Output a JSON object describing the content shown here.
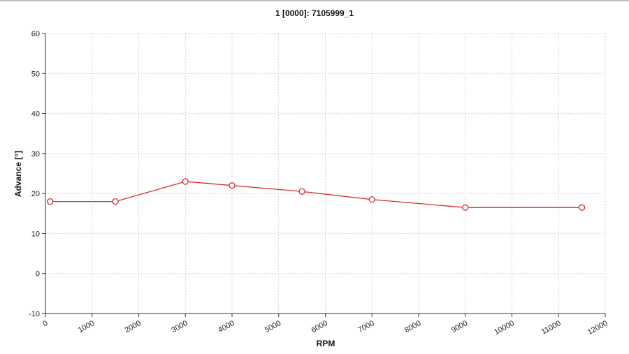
{
  "chart_data": {
    "type": "line",
    "title": "1 [0000]: 7105999_1",
    "xlabel": "RPM",
    "ylabel": "Advance [°]",
    "xlim": [
      0,
      12000
    ],
    "ylim": [
      -10,
      60
    ],
    "x_ticks": [
      "0",
      "1000",
      "2000",
      "3000",
      "4000",
      "5000",
      "6000",
      "7000",
      "8000",
      "9000",
      "10000",
      "11000",
      "12000"
    ],
    "y_ticks": [
      "-10",
      "0",
      "10",
      "20",
      "30",
      "40",
      "50",
      "60"
    ],
    "grid": true,
    "series": [
      {
        "color": "#d03030",
        "x": [
          100,
          1500,
          3000,
          4000,
          5500,
          7000,
          9000,
          11500
        ],
        "y": [
          18,
          18,
          23,
          22,
          20.5,
          18.5,
          16.5,
          16.5
        ]
      }
    ]
  }
}
